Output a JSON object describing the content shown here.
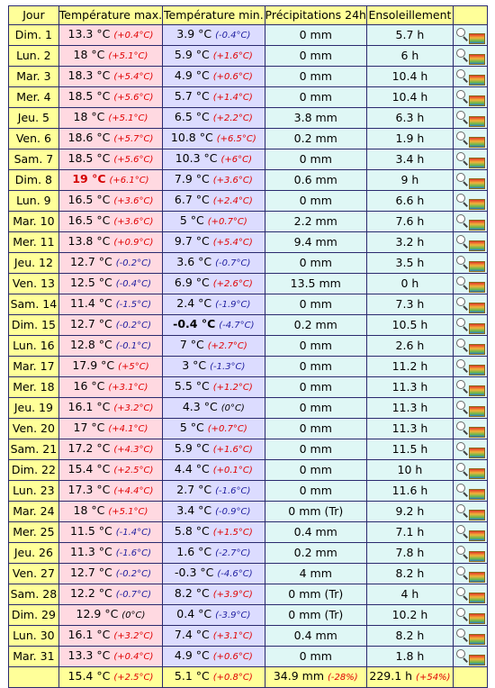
{
  "headers": {
    "day": "Jour",
    "tmax": "Température max.",
    "tmin": "Température min.",
    "prec": "Précipitations 24h",
    "sun": "Ensoleillement",
    "icon": ""
  },
  "rows": [
    {
      "day": "Dim. 1",
      "tmax": "13.3 °C",
      "tmax_dev": "(+0.4°C)",
      "tmin": "3.9 °C",
      "tmin_dev": "(-0.4°C)",
      "prec": "0 mm",
      "sun": "5.7 h"
    },
    {
      "day": "Lun. 2",
      "tmax": "18 °C",
      "tmax_dev": "(+5.1°C)",
      "tmin": "5.9 °C",
      "tmin_dev": "(+1.6°C)",
      "prec": "0 mm",
      "sun": "6 h"
    },
    {
      "day": "Mar. 3",
      "tmax": "18.3 °C",
      "tmax_dev": "(+5.4°C)",
      "tmin": "4.9 °C",
      "tmin_dev": "(+0.6°C)",
      "prec": "0 mm",
      "sun": "10.4 h"
    },
    {
      "day": "Mer. 4",
      "tmax": "18.5 °C",
      "tmax_dev": "(+5.6°C)",
      "tmin": "5.7 °C",
      "tmin_dev": "(+1.4°C)",
      "prec": "0 mm",
      "sun": "10.4 h"
    },
    {
      "day": "Jeu. 5",
      "tmax": "18 °C",
      "tmax_dev": "(+5.1°C)",
      "tmin": "6.5 °C",
      "tmin_dev": "(+2.2°C)",
      "prec": "3.8 mm",
      "sun": "6.3 h"
    },
    {
      "day": "Ven. 6",
      "tmax": "18.6 °C",
      "tmax_dev": "(+5.7°C)",
      "tmin": "10.8 °C",
      "tmin_dev": "(+6.5°C)",
      "prec": "0.2 mm",
      "sun": "1.9 h"
    },
    {
      "day": "Sam. 7",
      "tmax": "18.5 °C",
      "tmax_dev": "(+5.6°C)",
      "tmin": "10.3 °C",
      "tmin_dev": "(+6°C)",
      "prec": "0 mm",
      "sun": "3.4 h"
    },
    {
      "day": "Dim. 8",
      "tmax": "19 °C",
      "tmax_dev": "(+6.1°C)",
      "tmin": "7.9 °C",
      "tmin_dev": "(+3.6°C)",
      "prec": "0.6 mm",
      "sun": "9 h",
      "tmax_record": true
    },
    {
      "day": "Lun. 9",
      "tmax": "16.5 °C",
      "tmax_dev": "(+3.6°C)",
      "tmin": "6.7 °C",
      "tmin_dev": "(+2.4°C)",
      "prec": "0 mm",
      "sun": "6.6 h"
    },
    {
      "day": "Mar. 10",
      "tmax": "16.5 °C",
      "tmax_dev": "(+3.6°C)",
      "tmin": "5 °C",
      "tmin_dev": "(+0.7°C)",
      "prec": "2.2 mm",
      "sun": "7.6 h"
    },
    {
      "day": "Mer. 11",
      "tmax": "13.8 °C",
      "tmax_dev": "(+0.9°C)",
      "tmin": "9.7 °C",
      "tmin_dev": "(+5.4°C)",
      "prec": "9.4 mm",
      "sun": "3.2 h"
    },
    {
      "day": "Jeu. 12",
      "tmax": "12.7 °C",
      "tmax_dev": "(-0.2°C)",
      "tmin": "3.6 °C",
      "tmin_dev": "(-0.7°C)",
      "prec": "0 mm",
      "sun": "3.5 h"
    },
    {
      "day": "Ven. 13",
      "tmax": "12.5 °C",
      "tmax_dev": "(-0.4°C)",
      "tmin": "6.9 °C",
      "tmin_dev": "(+2.6°C)",
      "prec": "13.5 mm",
      "sun": "0 h"
    },
    {
      "day": "Sam. 14",
      "tmax": "11.4 °C",
      "tmax_dev": "(-1.5°C)",
      "tmin": "2.4 °C",
      "tmin_dev": "(-1.9°C)",
      "prec": "0 mm",
      "sun": "7.3 h"
    },
    {
      "day": "Dim. 15",
      "tmax": "12.7 °C",
      "tmax_dev": "(-0.2°C)",
      "tmin": "-0.4 °C",
      "tmin_dev": "(-4.7°C)",
      "prec": "0.2 mm",
      "sun": "10.5 h",
      "tmin_record": true
    },
    {
      "day": "Lun. 16",
      "tmax": "12.8 °C",
      "tmax_dev": "(-0.1°C)",
      "tmin": "7 °C",
      "tmin_dev": "(+2.7°C)",
      "prec": "0 mm",
      "sun": "2.6 h"
    },
    {
      "day": "Mar. 17",
      "tmax": "17.9 °C",
      "tmax_dev": "(+5°C)",
      "tmin": "3 °C",
      "tmin_dev": "(-1.3°C)",
      "prec": "0 mm",
      "sun": "11.2 h"
    },
    {
      "day": "Mer. 18",
      "tmax": "16 °C",
      "tmax_dev": "(+3.1°C)",
      "tmin": "5.5 °C",
      "tmin_dev": "(+1.2°C)",
      "prec": "0 mm",
      "sun": "11.3 h"
    },
    {
      "day": "Jeu. 19",
      "tmax": "16.1 °C",
      "tmax_dev": "(+3.2°C)",
      "tmin": "4.3 °C",
      "tmin_dev": "(0°C)",
      "prec": "0 mm",
      "sun": "11.3 h"
    },
    {
      "day": "Ven. 20",
      "tmax": "17 °C",
      "tmax_dev": "(+4.1°C)",
      "tmin": "5 °C",
      "tmin_dev": "(+0.7°C)",
      "prec": "0 mm",
      "sun": "11.3 h"
    },
    {
      "day": "Sam. 21",
      "tmax": "17.2 °C",
      "tmax_dev": "(+4.3°C)",
      "tmin": "5.9 °C",
      "tmin_dev": "(+1.6°C)",
      "prec": "0 mm",
      "sun": "11.5 h"
    },
    {
      "day": "Dim. 22",
      "tmax": "15.4 °C",
      "tmax_dev": "(+2.5°C)",
      "tmin": "4.4 °C",
      "tmin_dev": "(+0.1°C)",
      "prec": "0 mm",
      "sun": "10 h"
    },
    {
      "day": "Lun. 23",
      "tmax": "17.3 °C",
      "tmax_dev": "(+4.4°C)",
      "tmin": "2.7 °C",
      "tmin_dev": "(-1.6°C)",
      "prec": "0 mm",
      "sun": "11.6 h"
    },
    {
      "day": "Mar. 24",
      "tmax": "18 °C",
      "tmax_dev": "(+5.1°C)",
      "tmin": "3.4 °C",
      "tmin_dev": "(-0.9°C)",
      "prec": "0 mm (Tr)",
      "sun": "9.2 h"
    },
    {
      "day": "Mer. 25",
      "tmax": "11.5 °C",
      "tmax_dev": "(-1.4°C)",
      "tmin": "5.8 °C",
      "tmin_dev": "(+1.5°C)",
      "prec": "0.4 mm",
      "sun": "7.1 h"
    },
    {
      "day": "Jeu. 26",
      "tmax": "11.3 °C",
      "tmax_dev": "(-1.6°C)",
      "tmin": "1.6 °C",
      "tmin_dev": "(-2.7°C)",
      "prec": "0.2 mm",
      "sun": "7.8 h"
    },
    {
      "day": "Ven. 27",
      "tmax": "12.7 °C",
      "tmax_dev": "(-0.2°C)",
      "tmin": "-0.3 °C",
      "tmin_dev": "(-4.6°C)",
      "prec": "4 mm",
      "sun": "8.2 h"
    },
    {
      "day": "Sam. 28",
      "tmax": "12.2 °C",
      "tmax_dev": "(-0.7°C)",
      "tmin": "8.2 °C",
      "tmin_dev": "(+3.9°C)",
      "prec": "0 mm (Tr)",
      "sun": "4 h"
    },
    {
      "day": "Dim. 29",
      "tmax": "12.9 °C",
      "tmax_dev": "(0°C)",
      "tmin": "0.4 °C",
      "tmin_dev": "(-3.9°C)",
      "prec": "0 mm (Tr)",
      "sun": "10.2 h"
    },
    {
      "day": "Lun. 30",
      "tmax": "16.1 °C",
      "tmax_dev": "(+3.2°C)",
      "tmin": "7.4 °C",
      "tmin_dev": "(+3.1°C)",
      "prec": "0.4 mm",
      "sun": "8.2 h"
    },
    {
      "day": "Mar. 31",
      "tmax": "13.3 °C",
      "tmax_dev": "(+0.4°C)",
      "tmin": "4.9 °C",
      "tmin_dev": "(+0.6°C)",
      "prec": "0 mm",
      "sun": "1.8 h"
    }
  ],
  "totals": {
    "tmax": "15.4 °C",
    "tmax_dev": "(+2.5°C)",
    "tmin": "5.1 °C",
    "tmin_dev": "(+0.8°C)",
    "prec": "34.9 mm",
    "prec_dev": "(-28%)",
    "sun": "229.1 h",
    "sun_dev": "(+54%)"
  },
  "icons": {
    "row_icon": "magnifier-chart-icon"
  },
  "colors": {
    "header_bg": "#ffff99",
    "tmax_bg": "#ffd9e1",
    "tmin_bg": "#dcdcff",
    "other_bg": "#dff7f5",
    "positive_dev": "#e00000",
    "negative_dev": "#2020a0",
    "record_high": "#d40000"
  }
}
